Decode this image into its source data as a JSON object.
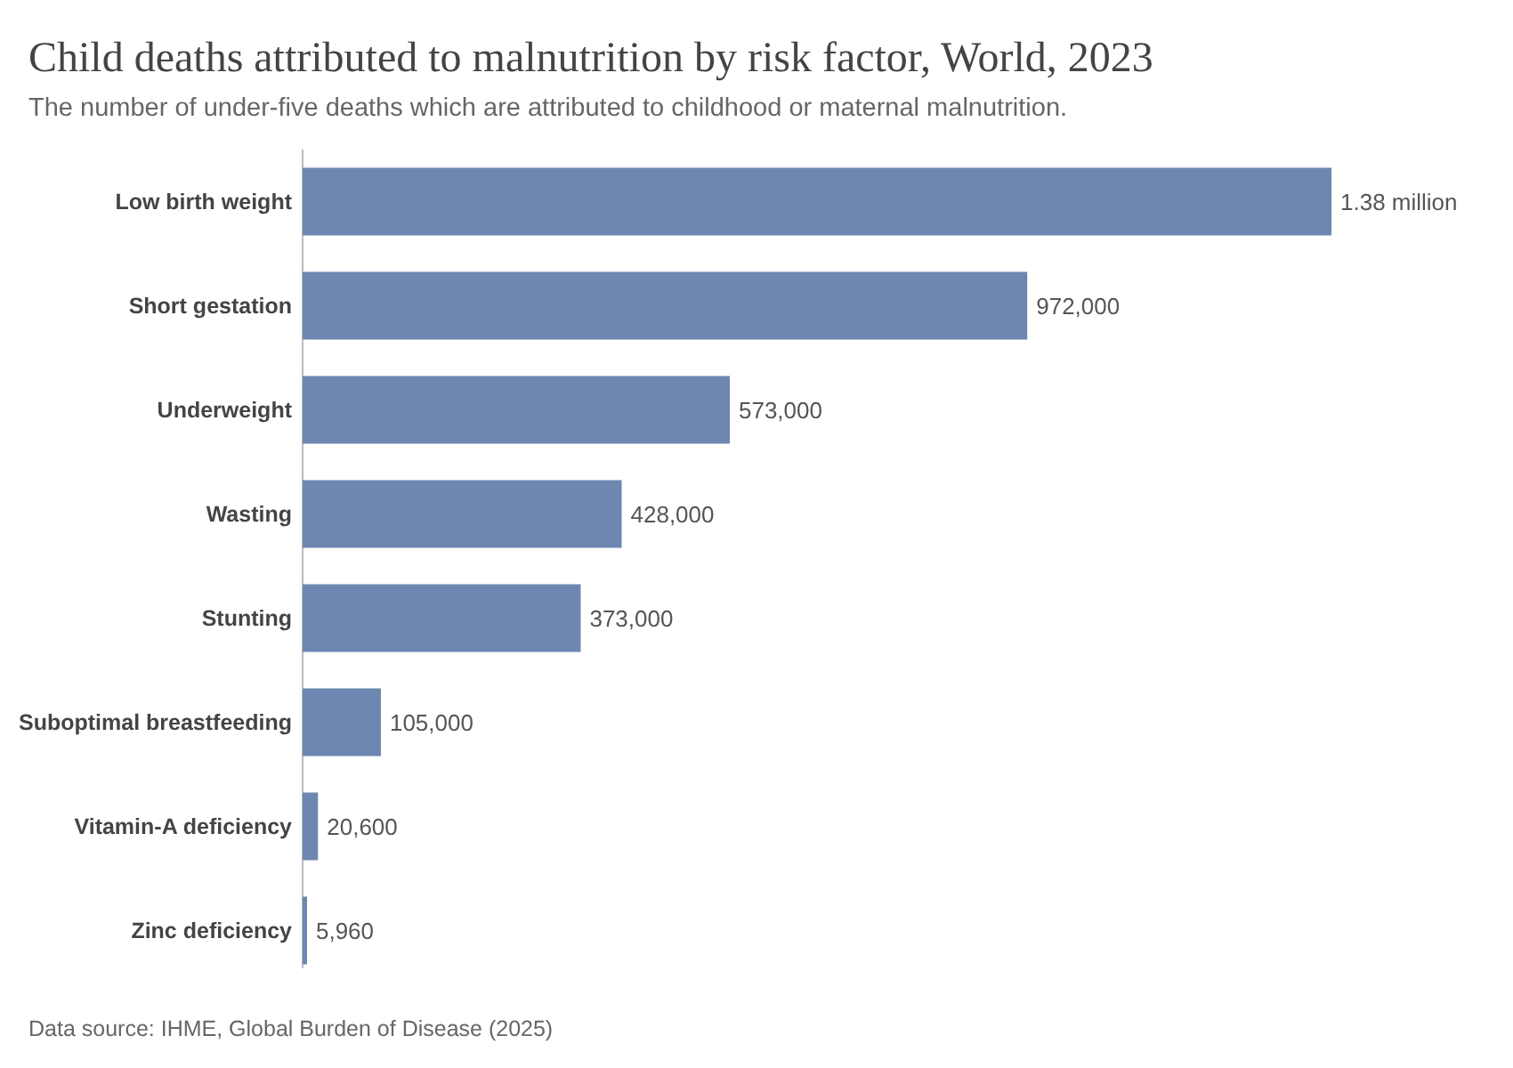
{
  "chart_data": {
    "type": "bar",
    "orientation": "horizontal",
    "title": "Child deaths attributed to malnutrition by risk factor, World, 2023",
    "subtitle": "The number of under-five deaths which are attributed to childhood or maternal malnutrition.",
    "categories": [
      "Low birth weight",
      "Short gestation",
      "Underweight",
      "Wasting",
      "Stunting",
      "Suboptimal breastfeeding",
      "Vitamin-A deficiency",
      "Zinc deficiency"
    ],
    "values": [
      1380000,
      972000,
      573000,
      428000,
      373000,
      105000,
      20600,
      5960
    ],
    "value_labels": [
      "1.38 million",
      "972,000",
      "573,000",
      "428,000",
      "373,000",
      "105,000",
      "20,600",
      "5,960"
    ],
    "color": "#6d87b0",
    "annotations": [
      "Data source: IHME, Global Burden of Disease (2025)"
    ]
  }
}
